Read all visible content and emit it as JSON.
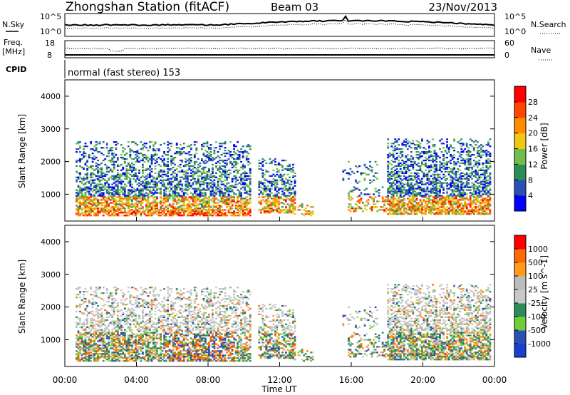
{
  "header": {
    "station": "Zhongshan Station (fitACF)",
    "beam": "Beam 03",
    "date": "23/Nov/2013"
  },
  "top_panels": {
    "nsky_label": "N.Sky",
    "nsearch_label": "N.Search",
    "nsky_ticks": [
      "10^5",
      "10^0"
    ],
    "nsearch_ticks": [
      "10^5",
      "10^0"
    ],
    "freq_label": "Freq.",
    "freq_unit": "[MHz]",
    "freq_ticks": [
      "18",
      "8"
    ],
    "nave_label": "Nave",
    "nave_ticks": [
      "60",
      "0"
    ],
    "cpid_label": "CPID",
    "cpid_text": "normal (fast stereo) 153"
  },
  "colors": {
    "power": [
      "#0000ff",
      "#2a4fb5",
      "#2e8b57",
      "#6fbf4a",
      "#f0c814",
      "#ff8c00",
      "#ff4500",
      "#ff0000"
    ],
    "velocity": [
      "#ff0000",
      "#ff6a00",
      "#ff9a1a",
      "#bcbcbc",
      "#c8c8c8",
      "#2e8b57",
      "#6fcf3a",
      "#2a4fb5",
      "#1a3fd0"
    ]
  },
  "chart_data": [
    {
      "type": "heatmap",
      "title": "",
      "xlabel": "",
      "ylabel": "Slant Range [km]",
      "y_ticks": [
        "4000",
        "3000",
        "2000",
        "1000"
      ],
      "ylim": [
        180,
        4500
      ],
      "colorbar_label": "Power [dB]",
      "colorbar_ticks": [
        "28",
        "24",
        "20",
        "16",
        "12",
        "8",
        "4"
      ],
      "colorbar_range": [
        0,
        32
      ]
    },
    {
      "type": "heatmap",
      "title": "",
      "xlabel": "Time UT",
      "ylabel": "Slant Range [km]",
      "x_ticks": [
        "00:00",
        "04:00",
        "08:00",
        "12:00",
        "16:00",
        "20:00",
        "00:00"
      ],
      "y_ticks": [
        "4000",
        "3000",
        "2000",
        "1000"
      ],
      "ylim": [
        180,
        4500
      ],
      "colorbar_label": "Velocity [m s^-1]",
      "colorbar_ticks": [
        "1000",
        "500",
        "100",
        "25",
        "-25",
        "-100",
        "-500",
        "-1000"
      ]
    }
  ]
}
